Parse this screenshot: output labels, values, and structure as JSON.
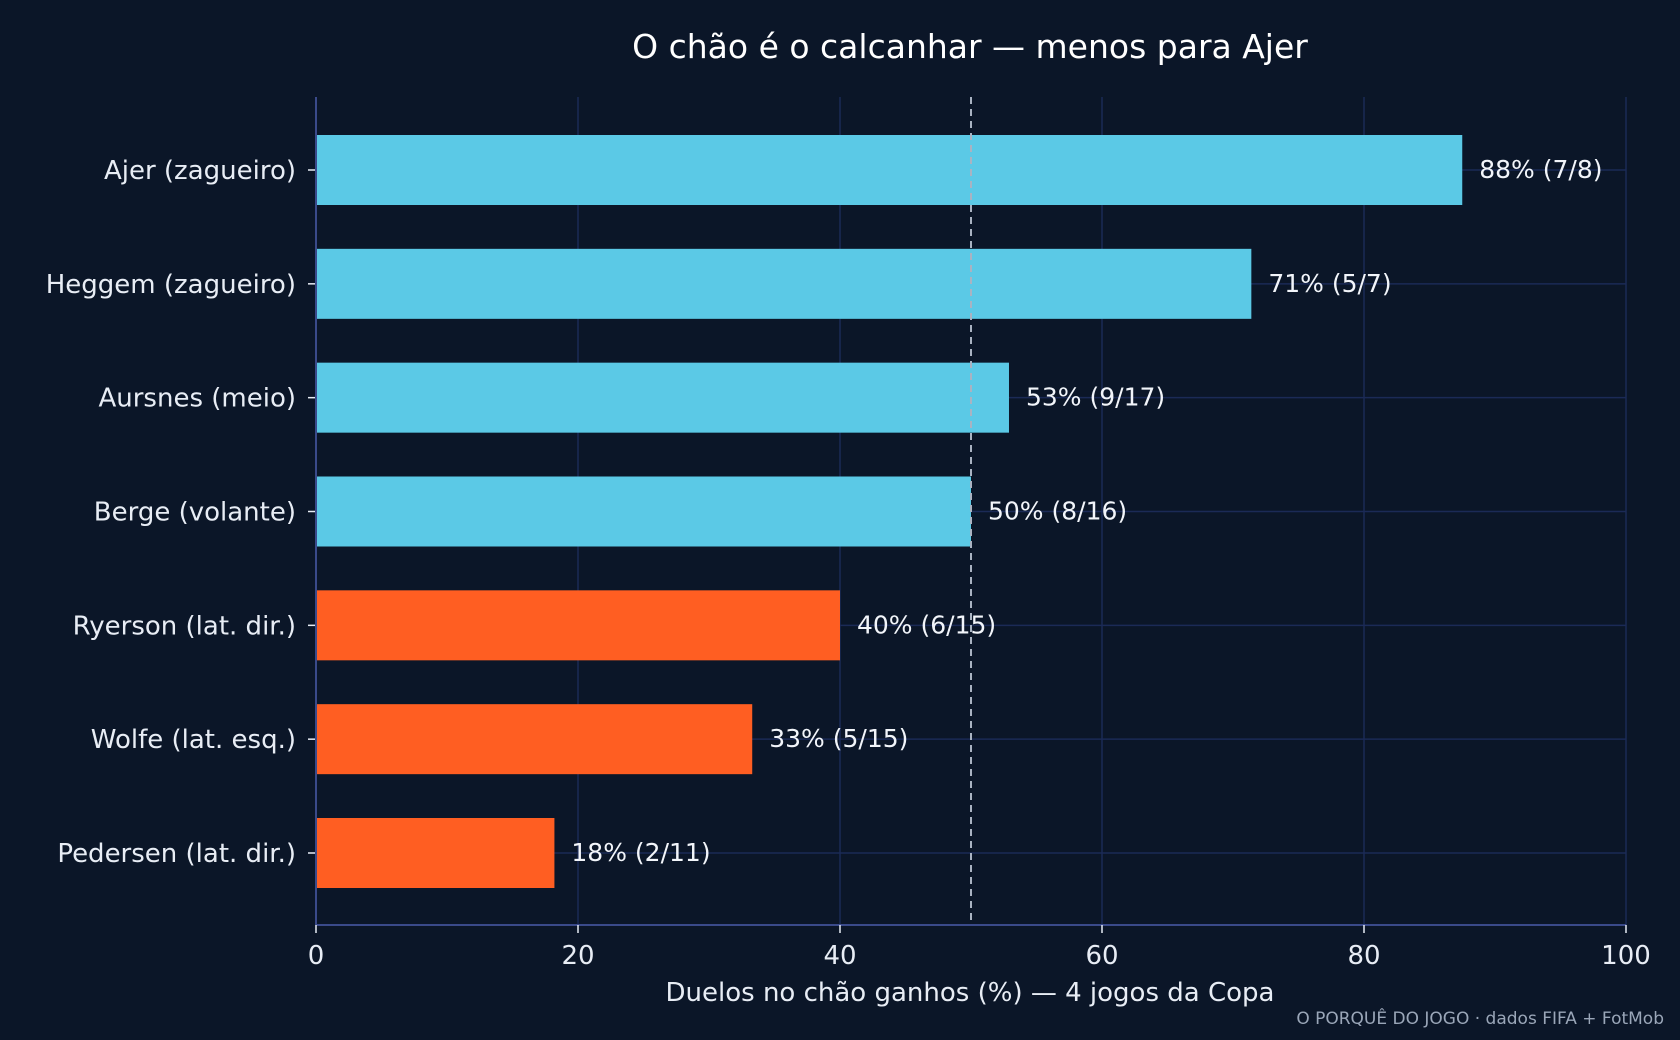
{
  "chart_data": {
    "type": "bar",
    "orientation": "horizontal",
    "title": "O chão é o calcanhar — menos para Ajer",
    "xlabel": "Duelos no chão ganhos (%) — 4 jogos da Copa",
    "ylabel": "",
    "xlim": [
      0,
      100
    ],
    "xticks": [
      0,
      20,
      40,
      60,
      80,
      100
    ],
    "xtick_labels": [
      "0",
      "20",
      "40",
      "60",
      "80",
      "100"
    ],
    "grid": true,
    "reference_line": {
      "x": 50,
      "style": "dashed"
    },
    "categories": [
      "Ajer (zagueiro)",
      "Heggem (zagueiro)",
      "Aursnes (meio)",
      "Berge (volante)",
      "Ryerson (lat. dir.)",
      "Wolfe (lat. esq.)",
      "Pedersen (lat. dir.)"
    ],
    "values": [
      87.5,
      71.4,
      52.9,
      50.0,
      40.0,
      33.3,
      18.2
    ],
    "value_labels": [
      "88%  (7/8)",
      "71%  (5/7)",
      "53%  (9/17)",
      "50%  (8/16)",
      "40%  (6/15)",
      "33%  (5/15)",
      "18%  (2/11)"
    ],
    "bar_colors": [
      "#5bc9e6",
      "#5bc9e6",
      "#5bc9e6",
      "#5bc9e6",
      "#ff5e22",
      "#ff5e22",
      "#ff5e22"
    ]
  },
  "footer": "O PORQUÊ DO JOGO · dados FIFA + FotMob",
  "colors": {
    "background": "#0b1628",
    "grid": "#1b2a56",
    "axis": "#3a4a8a",
    "reference_line": "#a9b3c2",
    "above_threshold": "#5bc9e6",
    "below_threshold": "#ff5e22"
  }
}
